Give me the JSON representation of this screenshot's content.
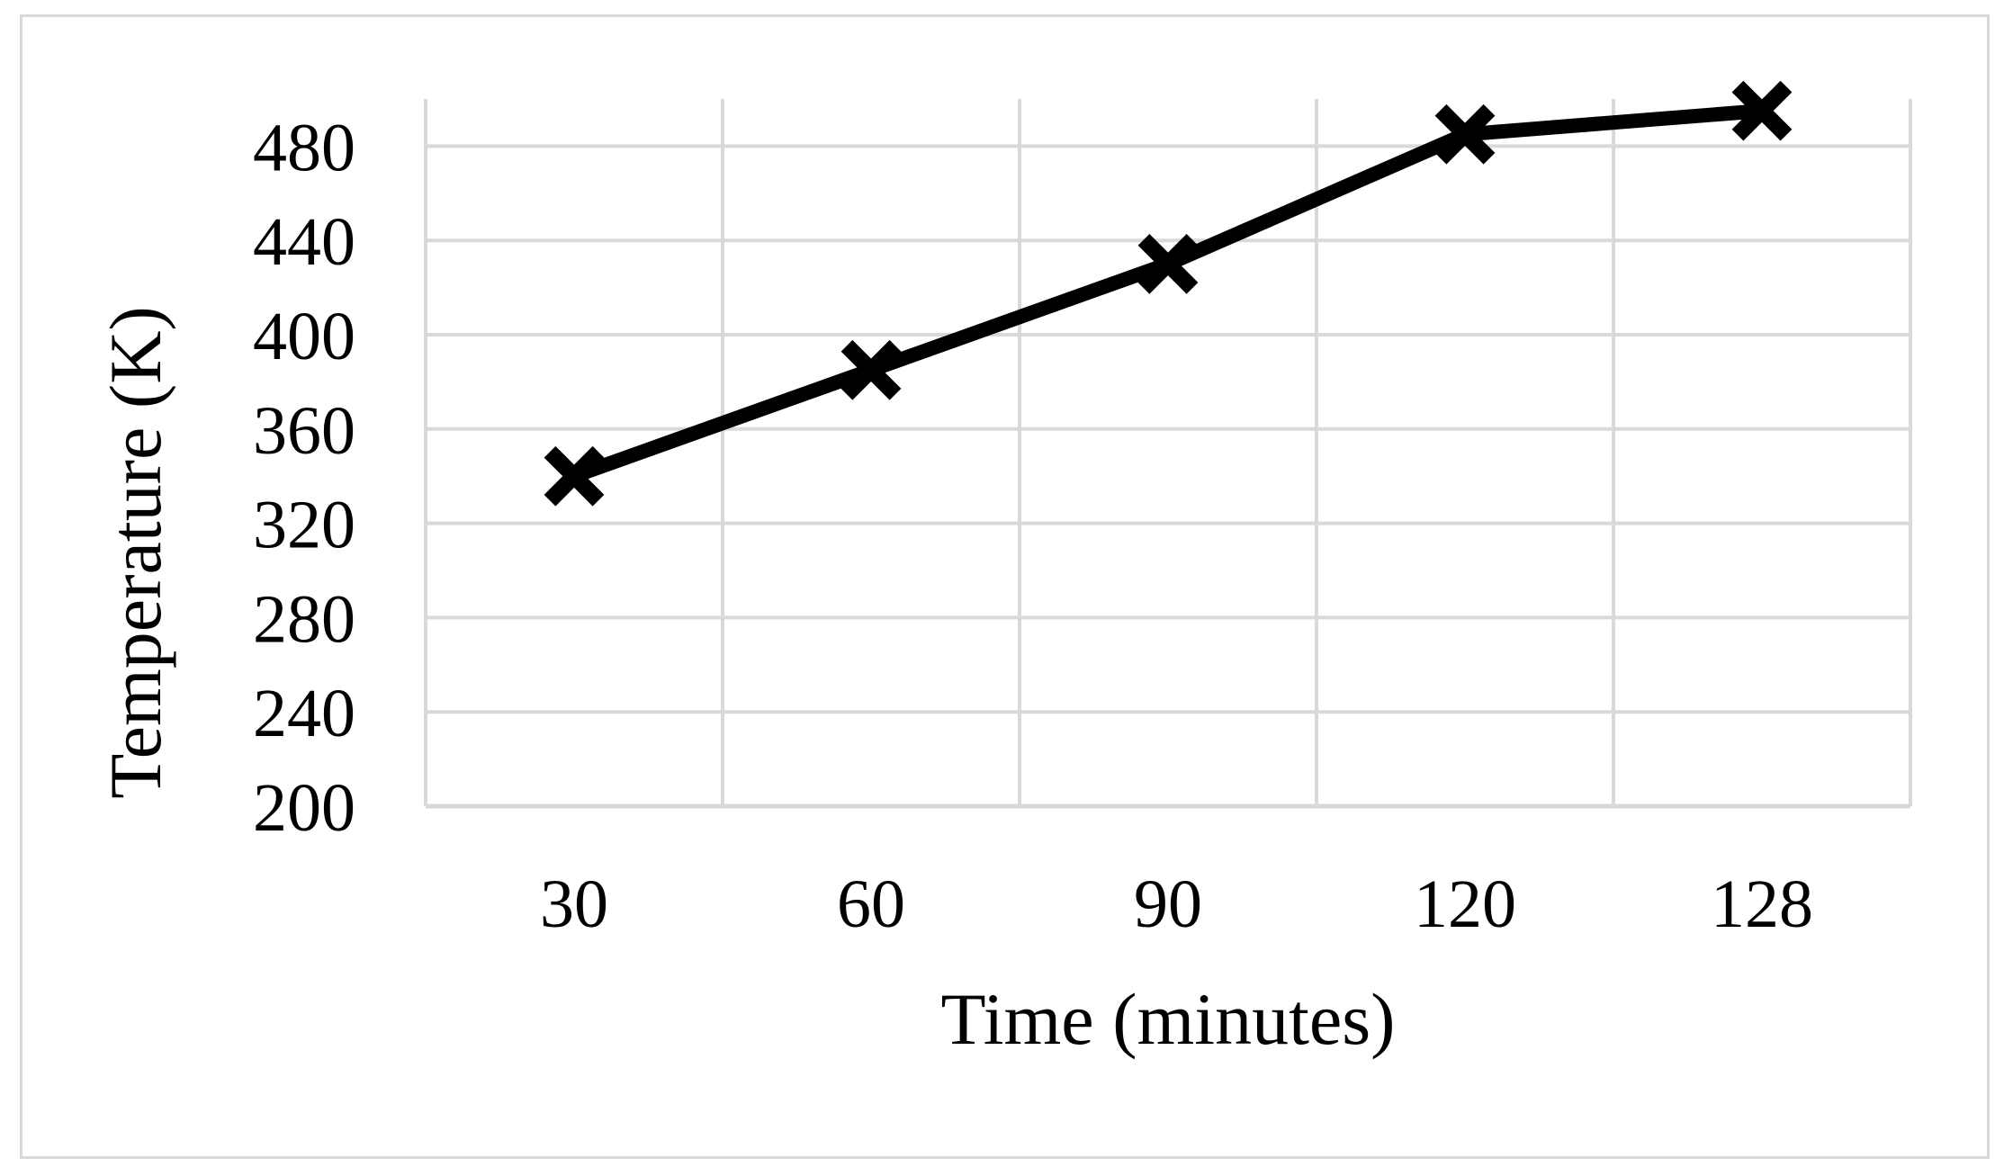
{
  "chart_data": {
    "type": "line",
    "categories": [
      "30",
      "60",
      "90",
      "120",
      "128"
    ],
    "series": [
      {
        "values": [
          340,
          385,
          430,
          485,
          495
        ]
      }
    ],
    "xlabel": "Time (minutes)",
    "ylabel": "Temperature (K)",
    "ylim": [
      200,
      500
    ],
    "yticks": [
      200,
      240,
      280,
      320,
      360,
      400,
      440,
      480
    ],
    "grid": true,
    "marker": "x",
    "line_color": "#000000",
    "grid_color": "#d9d9d9"
  }
}
